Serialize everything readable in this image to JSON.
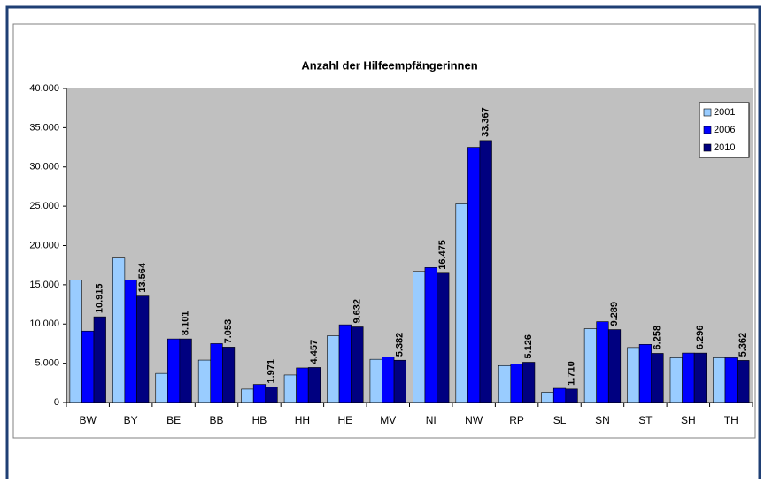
{
  "chart_data": {
    "type": "bar",
    "title": "Anzahl der Hilfeempfängerinnen",
    "categories": [
      "BW",
      "BY",
      "BE",
      "BB",
      "HB",
      "HH",
      "HE",
      "MV",
      "NI",
      "NW",
      "RP",
      "SL",
      "SN",
      "ST",
      "SH",
      "TH"
    ],
    "series": [
      {
        "name": "2001",
        "color": "#99ccff",
        "values": [
          15600,
          18400,
          3700,
          5400,
          1700,
          3500,
          8500,
          5500,
          16700,
          25300,
          4700,
          1300,
          9400,
          7000,
          5700,
          5700
        ]
      },
      {
        "name": "2006",
        "color": "#0000ff",
        "values": [
          9100,
          15600,
          8100,
          7500,
          2300,
          4400,
          9900,
          5800,
          17200,
          32500,
          4900,
          1800,
          10300,
          7400,
          6300,
          5700
        ]
      },
      {
        "name": "2010",
        "color": "#000080",
        "values": [
          10915,
          13564,
          8101,
          7053,
          1971,
          4457,
          9632,
          5382,
          16475,
          33367,
          5126,
          1710,
          9289,
          6258,
          6296,
          5362
        ],
        "value_labels": [
          "10.915",
          "13.564",
          "8.101",
          "7.053",
          "1.971",
          "4.457",
          "9.632",
          "5.382",
          "16.475",
          "33.367",
          "5.126",
          "1.710",
          "9.289",
          "6.258",
          "6.296",
          "5.362"
        ]
      }
    ],
    "ylim": [
      0,
      40000
    ],
    "yticks": [
      0,
      {
        "value": 5000,
        "label": "5.000"
      },
      {
        "value": 10000,
        "label": "10.000"
      },
      {
        "value": 15000,
        "label": "15.000"
      },
      {
        "value": 20000,
        "label": "20.000"
      },
      {
        "value": 25000,
        "label": "25.000"
      },
      {
        "value": 30000,
        "label": "30.000"
      },
      {
        "value": 35000,
        "label": "35.000"
      },
      {
        "value": 40000,
        "label": "40.000"
      }
    ],
    "legend": "top-right",
    "grid": false
  }
}
